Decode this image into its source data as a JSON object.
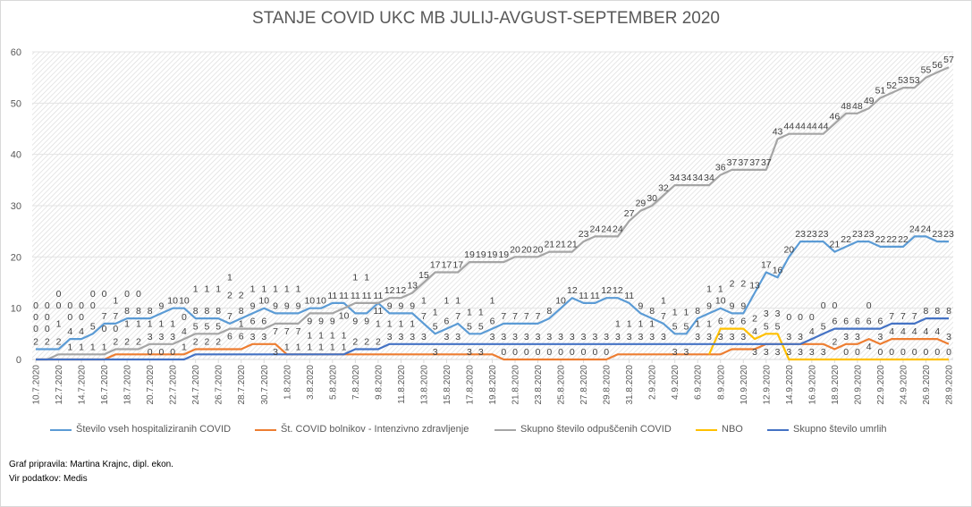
{
  "chart_data": {
    "type": "line",
    "title": "STANJE COVID UKC MB JULIJ-AVGUST-SEPTEMBER 2020",
    "xlabel": "",
    "ylabel": "",
    "ylim": [
      0,
      60
    ],
    "yticks": [
      0,
      10,
      20,
      30,
      40,
      50,
      60
    ],
    "grid": true,
    "legend_position": "bottom",
    "data_labels": true,
    "x": [
      "10.7.2020",
      "11.7.2020",
      "12.7.2020",
      "13.7.2020",
      "14.7.2020",
      "15.7.2020",
      "16.7.2020",
      "17.7.2020",
      "18.7.2020",
      "19.7.2020",
      "20.7.2020",
      "21.7.2020",
      "22.7.2020",
      "23.7.2020",
      "24.7.2020",
      "25.7.2020",
      "26.7.2020",
      "27.7.2020",
      "28.7.2020",
      "29.7.2020",
      "30.7.2020",
      "31.7.2020",
      "1.8.2020",
      "2.8.2020",
      "3.8.2020",
      "4.8.2020",
      "5.8.2020",
      "6.8.2020",
      "7.8.2020",
      "8.8.2020",
      "9.8.2020",
      "10.8.2020",
      "11.8.2020",
      "12.8.2020",
      "13.8.2020",
      "14.8.2020",
      "15.8.2020",
      "16.8.2020",
      "17.8.2020",
      "18.8.2020",
      "19.8.2020",
      "20.8.2020",
      "21.8.2020",
      "22.8.2020",
      "23.8.2020",
      "24.8.2020",
      "25.8.2020",
      "26.8.2020",
      "27.8.2020",
      "28.8.2020",
      "29.8.2020",
      "30.8.2020",
      "31.8.2020",
      "1.9.2020",
      "2.9.2020",
      "3.9.2020",
      "4.9.2020",
      "5.9.2020",
      "6.9.2020",
      "7.9.2020",
      "8.9.2020",
      "9.9.2020",
      "10.9.2020",
      "11.9.2020",
      "12.9.2020",
      "13.9.2020",
      "14.9.2020",
      "15.9.2020",
      "16.9.2020",
      "17.9.2020",
      "18.9.2020",
      "19.9.2020",
      "20.9.2020",
      "21.9.2020",
      "22.9.2020",
      "23.9.2020",
      "24.9.2020",
      "25.9.2020",
      "26.9.2020",
      "27.9.2020",
      "28.9.2020"
    ],
    "series": [
      {
        "name": "Število vseh hospitaliziranih COVID",
        "color": "#5B9BD5",
        "values": [
          2,
          2,
          2,
          4,
          4,
          5,
          7,
          7,
          8,
          8,
          8,
          9,
          10,
          10,
          8,
          8,
          8,
          7,
          8,
          9,
          10,
          9,
          9,
          9,
          10,
          10,
          11,
          11,
          9,
          9,
          11,
          9,
          9,
          9,
          7,
          5,
          6,
          7,
          5,
          5,
          6,
          7,
          7,
          7,
          7,
          8,
          10,
          12,
          11,
          11,
          12,
          12,
          11,
          9,
          8,
          7,
          5,
          5,
          8,
          9,
          10,
          9,
          9,
          13,
          17,
          16,
          20,
          23,
          23,
          23,
          21,
          22,
          23,
          23,
          22,
          22,
          22,
          24,
          24,
          23,
          23
        ]
      },
      {
        "name": "Št. COVID bolnikov - Intenzivno zdravljenje",
        "color": "#ED7D31",
        "values": [
          0,
          0,
          0,
          0,
          0,
          0,
          0,
          1,
          1,
          1,
          1,
          1,
          1,
          1,
          2,
          2,
          2,
          2,
          2,
          3,
          3,
          3,
          1,
          1,
          1,
          1,
          1,
          1,
          1,
          1,
          1,
          1,
          1,
          1,
          1,
          1,
          1,
          1,
          1,
          1,
          1,
          0,
          0,
          0,
          0,
          0,
          0,
          0,
          0,
          0,
          0,
          1,
          1,
          1,
          1,
          1,
          1,
          1,
          1,
          1,
          1,
          2,
          2,
          2,
          3,
          3,
          3,
          3,
          3,
          3,
          2,
          3,
          3,
          4,
          3,
          4,
          4,
          4,
          4,
          4,
          3
        ]
      },
      {
        "name": "Skupno število odpuščenih COVID",
        "color": "#A5A5A5",
        "values": [
          0,
          0,
          1,
          1,
          1,
          1,
          1,
          2,
          2,
          2,
          3,
          3,
          3,
          4,
          5,
          5,
          5,
          6,
          6,
          6,
          6,
          7,
          7,
          7,
          9,
          9,
          9,
          10,
          11,
          11,
          11,
          12,
          12,
          13,
          15,
          17,
          17,
          17,
          19,
          19,
          19,
          19,
          20,
          20,
          20,
          21,
          21,
          21,
          23,
          24,
          24,
          24,
          27,
          29,
          30,
          32,
          34,
          34,
          34,
          34,
          36,
          37,
          37,
          37,
          37,
          43,
          44,
          44,
          44,
          44,
          46,
          48,
          48,
          49,
          51,
          52,
          53,
          53,
          55,
          56,
          57
        ]
      },
      {
        "name": "NBO",
        "color": "#FFC000",
        "values": [
          null,
          null,
          null,
          null,
          null,
          null,
          null,
          null,
          null,
          null,
          null,
          null,
          null,
          null,
          null,
          null,
          null,
          null,
          null,
          null,
          null,
          null,
          null,
          null,
          null,
          null,
          null,
          null,
          null,
          null,
          null,
          null,
          null,
          null,
          null,
          null,
          null,
          null,
          null,
          null,
          null,
          null,
          null,
          null,
          null,
          null,
          null,
          null,
          null,
          null,
          null,
          null,
          null,
          null,
          null,
          null,
          null,
          null,
          null,
          1,
          6,
          6,
          6,
          4,
          5,
          5,
          0,
          0,
          0,
          0,
          0,
          0,
          0,
          0,
          0,
          0,
          0,
          0,
          0,
          0,
          0
        ]
      },
      {
        "name": "Skupno število umrlih",
        "color": "#4472C4",
        "values": [
          0,
          0,
          0,
          0,
          0,
          0,
          0,
          0,
          0,
          0,
          0,
          0,
          0,
          0,
          1,
          1,
          1,
          1,
          1,
          1,
          1,
          1,
          1,
          1,
          1,
          1,
          1,
          1,
          2,
          2,
          2,
          3,
          3,
          3,
          3,
          3,
          3,
          3,
          3,
          3,
          3,
          3,
          3,
          3,
          3,
          3,
          3,
          3,
          3,
          3,
          3,
          3,
          3,
          3,
          3,
          3,
          3,
          3,
          3,
          3,
          3,
          3,
          3,
          3,
          3,
          3,
          3,
          3,
          4,
          5,
          6,
          6,
          6,
          6,
          6,
          7,
          7,
          7,
          8,
          8,
          8
        ]
      }
    ]
  },
  "footer": {
    "author": "Graf pripravila: Martina Krajnc, dipl. ekon.",
    "source": "Vir podatkov: Medis"
  }
}
